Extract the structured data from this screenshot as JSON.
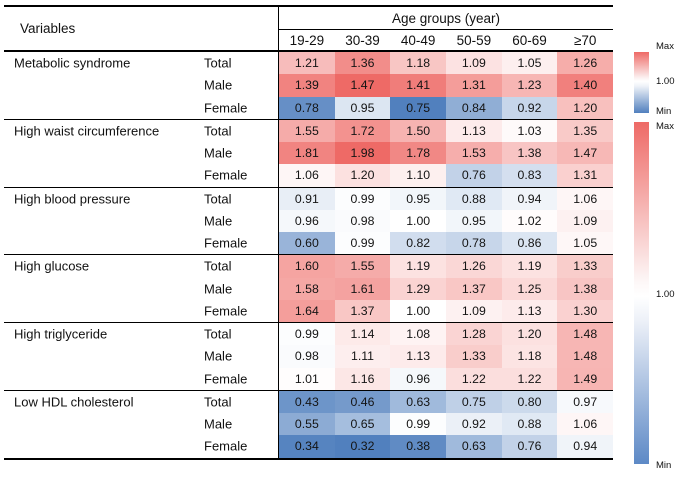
{
  "header": {
    "variables_label": "Variables",
    "age_groups_label": "Age groups (year)"
  },
  "legend": [
    {
      "max": "Max",
      "mid": "1.00",
      "min": "Min"
    },
    {
      "max": "Max",
      "mid": "1.00",
      "min": "Min"
    }
  ],
  "colors": {
    "heat_max": "#ee6a66",
    "heat_mid": "#ffffff",
    "heat_min": "#5180be",
    "border": "#000000"
  },
  "chart_data": {
    "type": "heatmap",
    "row_axis_title": "Variables",
    "column_axis_title": "Age groups (year)",
    "columns": [
      "19-29",
      "30-39",
      "40-49",
      "50-59",
      "60-69",
      "≥70"
    ],
    "legend_position": "right",
    "colorscale_note": "diverging red-white-blue, white at 1.00; first group has own scale, remaining groups share second scale",
    "groups": [
      {
        "name": "Metabolic syndrome",
        "scale": 0,
        "rows": [
          {
            "label": "Total",
            "values": [
              1.21,
              1.36,
              1.18,
              1.09,
              1.05,
              1.26
            ]
          },
          {
            "label": "Male",
            "values": [
              1.39,
              1.47,
              1.41,
              1.31,
              1.23,
              1.4
            ]
          },
          {
            "label": "Female",
            "values": [
              0.78,
              0.95,
              0.75,
              0.84,
              0.92,
              1.2
            ]
          }
        ]
      },
      {
        "name": "High waist circumference",
        "scale": 1,
        "rows": [
          {
            "label": "Total",
            "values": [
              1.55,
              1.72,
              1.5,
              1.13,
              1.03,
              1.35
            ]
          },
          {
            "label": "Male",
            "values": [
              1.81,
              1.98,
              1.78,
              1.53,
              1.38,
              1.47
            ]
          },
          {
            "label": "Female",
            "values": [
              1.06,
              1.2,
              1.1,
              0.76,
              0.83,
              1.31
            ]
          }
        ]
      },
      {
        "name": "High blood pressure",
        "scale": 1,
        "rows": [
          {
            "label": "Total",
            "values": [
              0.91,
              0.99,
              0.95,
              0.88,
              0.94,
              1.06
            ]
          },
          {
            "label": "Male",
            "values": [
              0.96,
              0.98,
              1.0,
              0.95,
              1.02,
              1.09
            ]
          },
          {
            "label": "Female",
            "values": [
              0.6,
              0.99,
              0.82,
              0.78,
              0.86,
              1.05
            ]
          }
        ]
      },
      {
        "name": "High glucose",
        "scale": 1,
        "rows": [
          {
            "label": "Total",
            "values": [
              1.6,
              1.55,
              1.19,
              1.26,
              1.19,
              1.33
            ]
          },
          {
            "label": "Male",
            "values": [
              1.58,
              1.61,
              1.29,
              1.37,
              1.25,
              1.38
            ]
          },
          {
            "label": "Female",
            "values": [
              1.64,
              1.37,
              1.0,
              1.09,
              1.13,
              1.3
            ]
          }
        ]
      },
      {
        "name": "High triglyceride",
        "scale": 1,
        "rows": [
          {
            "label": "Total",
            "values": [
              0.99,
              1.14,
              1.08,
              1.28,
              1.2,
              1.48
            ]
          },
          {
            "label": "Male",
            "values": [
              0.98,
              1.11,
              1.13,
              1.33,
              1.18,
              1.48
            ]
          },
          {
            "label": "Female",
            "values": [
              1.01,
              1.16,
              0.96,
              1.22,
              1.22,
              1.49
            ]
          }
        ]
      },
      {
        "name": "Low HDL cholesterol",
        "scale": 1,
        "rows": [
          {
            "label": "Total",
            "values": [
              0.43,
              0.46,
              0.63,
              0.75,
              0.8,
              0.97
            ]
          },
          {
            "label": "Male",
            "values": [
              0.55,
              0.65,
              0.99,
              0.92,
              0.88,
              1.06
            ]
          },
          {
            "label": "Female",
            "values": [
              0.34,
              0.32,
              0.38,
              0.63,
              0.76,
              0.94
            ]
          }
        ]
      }
    ]
  }
}
